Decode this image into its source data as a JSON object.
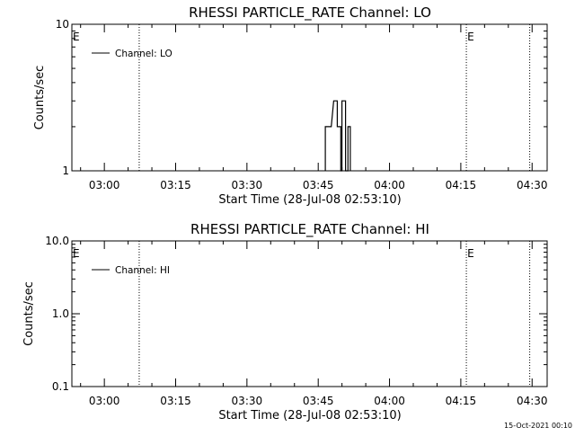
{
  "footer_timestamp": "15-Oct-2021 00:10",
  "chart_data": [
    {
      "type": "line",
      "title": "RHESSI PARTICLE_RATE Channel: LO",
      "xlabel": "Start Time (28-Jul-08 02:53:10)",
      "ylabel": "Counts/sec",
      "yscale": "log",
      "ylim": [
        1,
        10
      ],
      "yticks": [
        1,
        10
      ],
      "ytick_labels": [
        "1",
        "10"
      ],
      "xlim": [
        "02:53:10",
        "04:33:10"
      ],
      "xticks": [
        "03:00",
        "03:15",
        "03:30",
        "03:45",
        "04:00",
        "04:15",
        "04:30"
      ],
      "grid": false,
      "legend": {
        "position": "top-left",
        "entries": [
          "Channel: LO"
        ]
      },
      "series": [
        {
          "name": "Channel: LO",
          "color": "#000000",
          "points": [
            [
              "03:46:30",
              1
            ],
            [
              "03:46:30",
              2
            ],
            [
              "03:47:45",
              2
            ],
            [
              "03:48:15",
              3
            ],
            [
              "03:49:00",
              3
            ],
            [
              "03:49:00",
              2
            ],
            [
              "03:49:45",
              2
            ],
            [
              "03:49:45",
              1
            ],
            [
              "03:50:00",
              1
            ],
            [
              "03:50:00",
              3
            ],
            [
              "03:50:45",
              3
            ],
            [
              "03:50:45",
              1
            ],
            [
              "03:51:15",
              1
            ],
            [
              "03:51:15",
              2
            ],
            [
              "03:51:45",
              2
            ],
            [
              "03:51:45",
              1
            ]
          ]
        }
      ],
      "markers": [
        {
          "label": "E",
          "time": "02:53:10"
        },
        {
          "label": "",
          "time": "03:07:20"
        },
        {
          "label": "E",
          "time": "04:16:10"
        },
        {
          "label": "",
          "time": "04:29:30"
        }
      ]
    },
    {
      "type": "line",
      "title": "RHESSI PARTICLE_RATE Channel: HI",
      "xlabel": "Start Time (28-Jul-08 02:53:10)",
      "ylabel": "Counts/sec",
      "yscale": "log",
      "ylim": [
        0.1,
        10
      ],
      "yticks": [
        0.1,
        1,
        10
      ],
      "ytick_labels": [
        "0.1",
        "1.0",
        "10.0"
      ],
      "xlim": [
        "02:53:10",
        "04:33:10"
      ],
      "xticks": [
        "03:00",
        "03:15",
        "03:30",
        "03:45",
        "04:00",
        "04:15",
        "04:30"
      ],
      "grid": false,
      "legend": {
        "position": "top-left",
        "entries": [
          "Channel: HI"
        ]
      },
      "series": [
        {
          "name": "Channel: HI",
          "color": "#000000",
          "points": []
        }
      ],
      "markers": [
        {
          "label": "E",
          "time": "02:53:10"
        },
        {
          "label": "",
          "time": "03:07:20"
        },
        {
          "label": "E",
          "time": "04:16:10"
        },
        {
          "label": "",
          "time": "04:29:30"
        }
      ]
    }
  ]
}
